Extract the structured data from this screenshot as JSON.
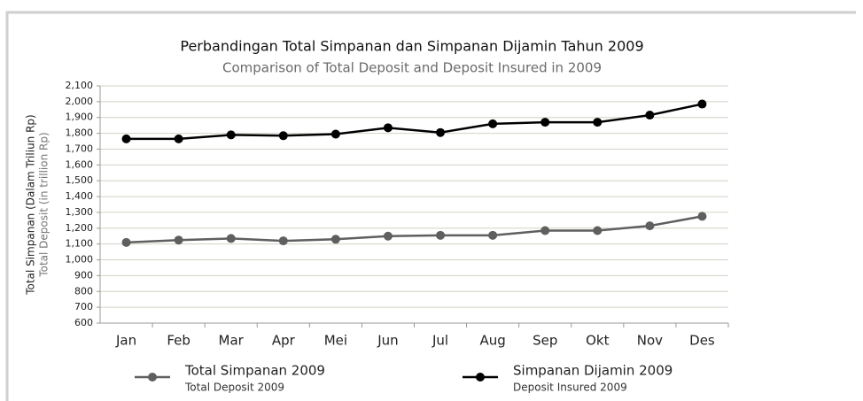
{
  "chart_data": {
    "type": "line",
    "title": "Perbandingan Total Simpanan dan Simpanan Dijamin Tahun 2009",
    "subtitle": "Comparison of Total Deposit and Deposit Insured in 2009",
    "y_label": "Total Simpanan (Dalam Triliun Rp)",
    "y_label_en": "Total Deposit (in trillion Rp)",
    "categories": [
      "Jan",
      "Feb",
      "Mar",
      "Apr",
      "Mei",
      "Jun",
      "Jul",
      "Aug",
      "Sep",
      "Okt",
      "Nov",
      "Des"
    ],
    "series": [
      {
        "name": "Total Simpanan 2009",
        "name_en": "Total Deposit 2009",
        "color": "#5f5f5f",
        "values": [
          1110,
          1125,
          1135,
          1120,
          1130,
          1150,
          1155,
          1155,
          1185,
          1185,
          1215,
          1275
        ]
      },
      {
        "name": "Simpanan Dijamin 2009",
        "name_en": "Deposit Insured 2009",
        "color": "#000000",
        "values": [
          1765,
          1765,
          1790,
          1785,
          1795,
          1835,
          1805,
          1860,
          1870,
          1870,
          1915,
          1985
        ]
      }
    ],
    "ylim": [
      600,
      2100
    ],
    "yticks": [
      600,
      700,
      800,
      900,
      {
        "value": 1000,
        "label": "1,000"
      },
      {
        "value": 1100,
        "label": "1,100"
      },
      {
        "value": 1200,
        "label": "1,200"
      },
      {
        "value": 1300,
        "label": "1,300"
      },
      {
        "value": 1400,
        "label": "1,400"
      },
      {
        "value": 1500,
        "label": "1,500"
      },
      {
        "value": 1600,
        "label": "1,600"
      },
      {
        "value": 1700,
        "label": "1,700"
      },
      {
        "value": 1800,
        "label": "1,800"
      },
      {
        "value": 1900,
        "label": "1,900"
      },
      {
        "value": 2000,
        "label": "2,000"
      },
      {
        "value": 2100,
        "label": "2,100"
      }
    ],
    "grid": true,
    "legend": "bottom"
  }
}
